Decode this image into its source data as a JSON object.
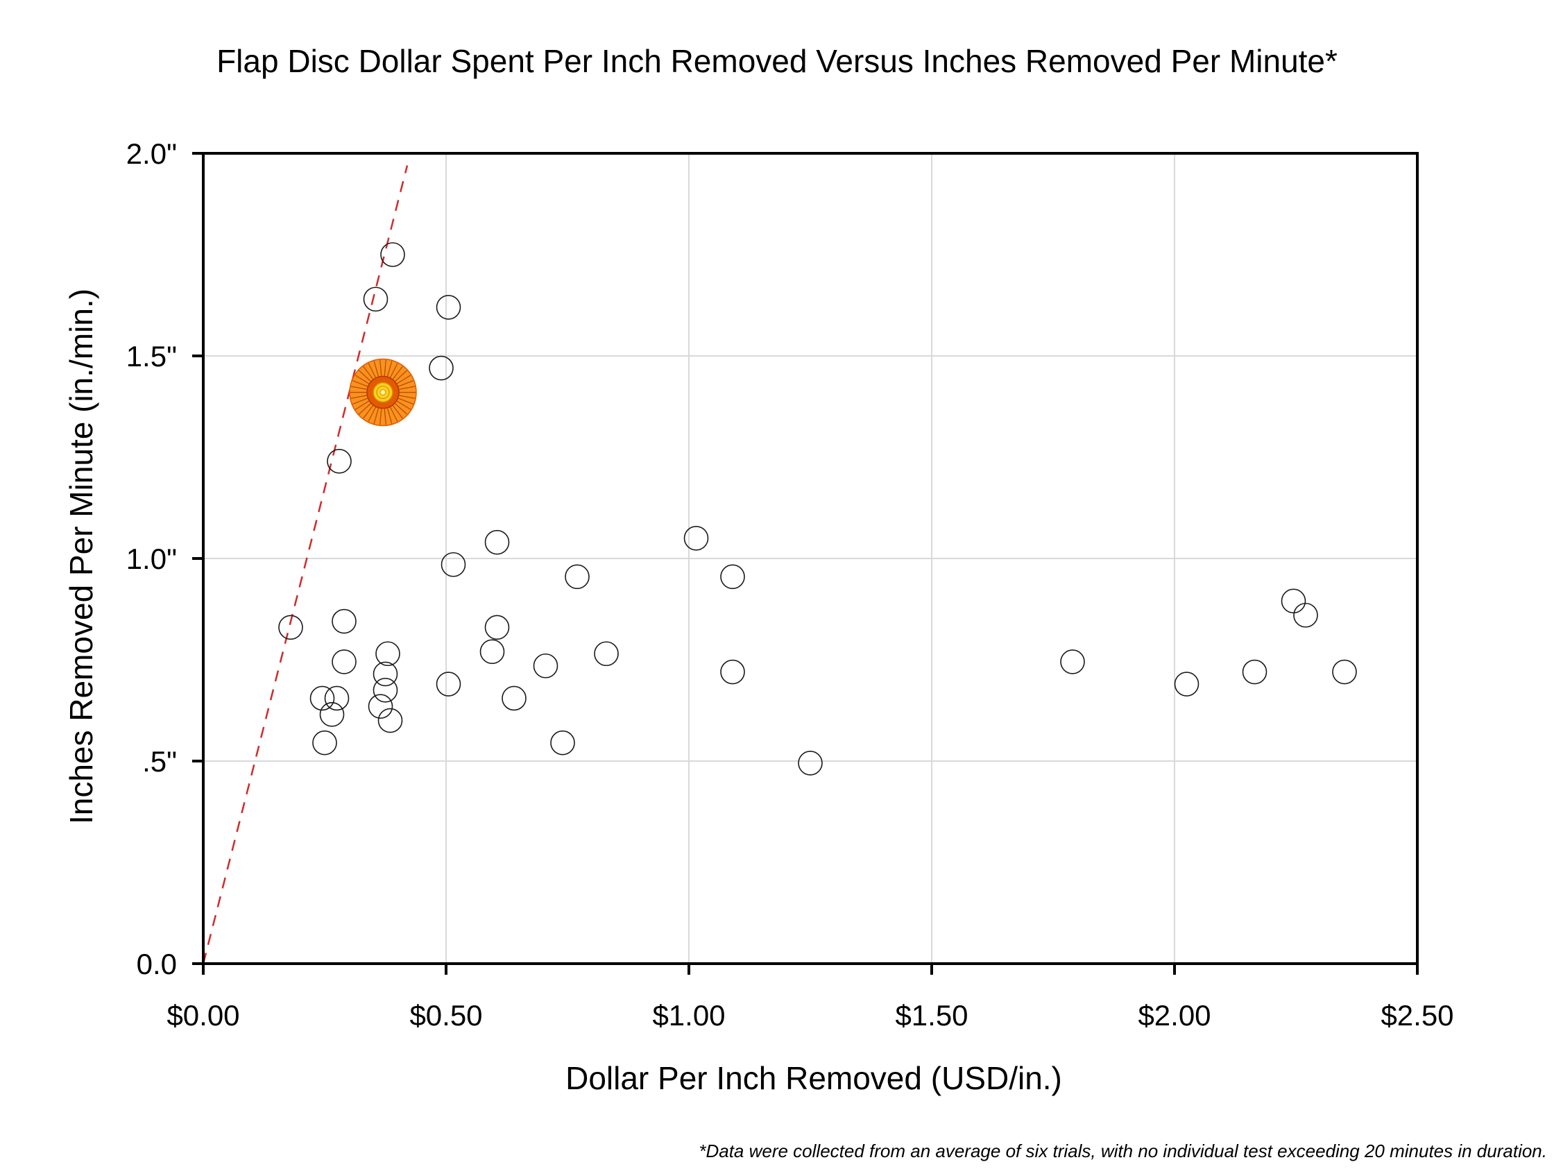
{
  "chart_data": {
    "type": "scatter",
    "title": "Flap Disc Dollar Spent Per Inch Removed Versus Inches Removed Per Minute*",
    "xlabel": "Dollar Per Inch Removed (USD/in.)",
    "ylabel": "Inches Removed Per Minute (in./min.)",
    "footnote": "*Data were collected from an average of six trials, with no individual test exceeding 20 minutes in duration.",
    "xlim": [
      0,
      2.5
    ],
    "ylim": [
      0,
      2.0
    ],
    "x_ticks": [
      {
        "value": 0.0,
        "label": "$0.00"
      },
      {
        "value": 0.5,
        "label": "$0.50"
      },
      {
        "value": 1.0,
        "label": "$1.00"
      },
      {
        "value": 1.5,
        "label": "$1.50"
      },
      {
        "value": 2.0,
        "label": "$2.00"
      },
      {
        "value": 2.5,
        "label": "$2.50"
      }
    ],
    "y_ticks": [
      {
        "value": 0.0,
        "label": "0.0"
      },
      {
        "value": 0.5,
        "label": ".5\""
      },
      {
        "value": 1.0,
        "label": "1.0\""
      },
      {
        "value": 1.5,
        "label": "1.5\""
      },
      {
        "value": 2.0,
        "label": "2.0\""
      }
    ],
    "grid": true,
    "reference_line": {
      "from": [
        0.0,
        0.0
      ],
      "to": [
        0.42,
        1.97
      ],
      "color": "#d12a2a",
      "style": "dashed"
    },
    "highlight": {
      "x": 0.37,
      "y": 1.41,
      "icon": "flap-disc-icon",
      "colors": [
        "#f7931e",
        "#e45a00",
        "#ffd21f"
      ]
    },
    "series": [
      {
        "points": [
          {
            "x": 0.39,
            "y": 1.75
          },
          {
            "x": 0.355,
            "y": 1.64
          },
          {
            "x": 0.505,
            "y": 1.62
          },
          {
            "x": 0.49,
            "y": 1.47
          },
          {
            "x": 0.28,
            "y": 1.24
          },
          {
            "x": 0.605,
            "y": 1.04
          },
          {
            "x": 1.015,
            "y": 1.05
          },
          {
            "x": 0.515,
            "y": 0.985
          },
          {
            "x": 0.77,
            "y": 0.955
          },
          {
            "x": 1.09,
            "y": 0.955
          },
          {
            "x": 0.18,
            "y": 0.83
          },
          {
            "x": 0.29,
            "y": 0.845
          },
          {
            "x": 0.605,
            "y": 0.83
          },
          {
            "x": 2.245,
            "y": 0.895
          },
          {
            "x": 2.27,
            "y": 0.86
          },
          {
            "x": 0.29,
            "y": 0.745
          },
          {
            "x": 0.38,
            "y": 0.765
          },
          {
            "x": 0.595,
            "y": 0.77
          },
          {
            "x": 0.83,
            "y": 0.765
          },
          {
            "x": 0.705,
            "y": 0.735
          },
          {
            "x": 1.79,
            "y": 0.745
          },
          {
            "x": 0.375,
            "y": 0.715
          },
          {
            "x": 1.09,
            "y": 0.72
          },
          {
            "x": 2.165,
            "y": 0.72
          },
          {
            "x": 2.35,
            "y": 0.72
          },
          {
            "x": 0.375,
            "y": 0.675
          },
          {
            "x": 0.505,
            "y": 0.69
          },
          {
            "x": 2.025,
            "y": 0.69
          },
          {
            "x": 0.245,
            "y": 0.655
          },
          {
            "x": 0.275,
            "y": 0.655
          },
          {
            "x": 0.64,
            "y": 0.655
          },
          {
            "x": 0.365,
            "y": 0.635
          },
          {
            "x": 0.265,
            "y": 0.615
          },
          {
            "x": 0.385,
            "y": 0.6
          },
          {
            "x": 0.25,
            "y": 0.545
          },
          {
            "x": 0.74,
            "y": 0.545
          },
          {
            "x": 1.25,
            "y": 0.495
          }
        ]
      }
    ]
  }
}
